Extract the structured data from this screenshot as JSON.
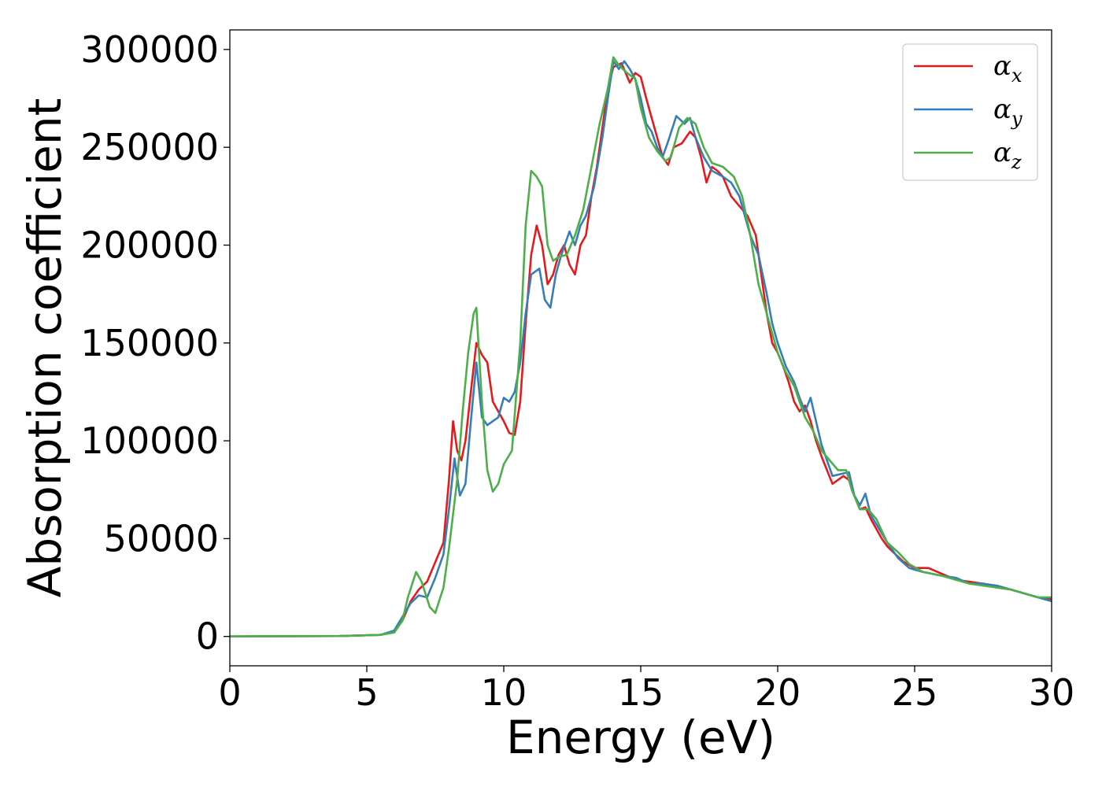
{
  "chart_data": {
    "type": "line",
    "title": "",
    "xlabel": "Energy (eV)",
    "ylabel": "Absorption coefficient",
    "xlim": [
      0,
      30
    ],
    "ylim": [
      -15000,
      310000
    ],
    "xticks": [
      0,
      5,
      10,
      15,
      20,
      25,
      30
    ],
    "yticks": [
      0,
      50000,
      100000,
      150000,
      200000,
      250000,
      300000
    ],
    "grid": false,
    "legend_position": "top-right",
    "series": [
      {
        "name": "αx",
        "base": "α",
        "sub": "x",
        "color": "#e41a1c",
        "points": [
          [
            0,
            0
          ],
          [
            4,
            200
          ],
          [
            5.5,
            800
          ],
          [
            6.0,
            2500
          ],
          [
            6.3,
            8000
          ],
          [
            6.6,
            18000
          ],
          [
            6.9,
            24000
          ],
          [
            7.2,
            28000
          ],
          [
            7.5,
            38000
          ],
          [
            7.8,
            48000
          ],
          [
            8.0,
            80000
          ],
          [
            8.15,
            110000
          ],
          [
            8.3,
            95000
          ],
          [
            8.45,
            90000
          ],
          [
            8.6,
            100000
          ],
          [
            8.8,
            125000
          ],
          [
            9.0,
            150000
          ],
          [
            9.2,
            144000
          ],
          [
            9.4,
            140000
          ],
          [
            9.6,
            120000
          ],
          [
            9.8,
            115000
          ],
          [
            10.0,
            110000
          ],
          [
            10.2,
            104000
          ],
          [
            10.4,
            103000
          ],
          [
            10.6,
            120000
          ],
          [
            10.8,
            160000
          ],
          [
            11.0,
            195000
          ],
          [
            11.2,
            210000
          ],
          [
            11.4,
            200000
          ],
          [
            11.6,
            180000
          ],
          [
            11.8,
            185000
          ],
          [
            12.0,
            195000
          ],
          [
            12.2,
            200000
          ],
          [
            12.4,
            190000
          ],
          [
            12.6,
            185000
          ],
          [
            12.8,
            200000
          ],
          [
            13.0,
            205000
          ],
          [
            13.2,
            225000
          ],
          [
            13.4,
            240000
          ],
          [
            13.6,
            260000
          ],
          [
            13.8,
            280000
          ],
          [
            14.0,
            291000
          ],
          [
            14.3,
            293000
          ],
          [
            14.6,
            283000
          ],
          [
            14.8,
            288000
          ],
          [
            15.0,
            286000
          ],
          [
            15.2,
            275000
          ],
          [
            15.4,
            265000
          ],
          [
            15.6,
            255000
          ],
          [
            15.8,
            245000
          ],
          [
            16.0,
            241000
          ],
          [
            16.2,
            250000
          ],
          [
            16.5,
            252000
          ],
          [
            16.8,
            258000
          ],
          [
            17.0,
            255000
          ],
          [
            17.2,
            245000
          ],
          [
            17.4,
            232000
          ],
          [
            17.6,
            240000
          ],
          [
            17.8,
            238000
          ],
          [
            18.0,
            235000
          ],
          [
            18.3,
            225000
          ],
          [
            18.6,
            220000
          ],
          [
            18.9,
            215000
          ],
          [
            19.2,
            205000
          ],
          [
            19.4,
            185000
          ],
          [
            19.6,
            165000
          ],
          [
            19.8,
            150000
          ],
          [
            20.0,
            145000
          ],
          [
            20.2,
            138000
          ],
          [
            20.4,
            130000
          ],
          [
            20.6,
            120000
          ],
          [
            20.8,
            115000
          ],
          [
            21.0,
            118000
          ],
          [
            21.2,
            110000
          ],
          [
            21.4,
            100000
          ],
          [
            21.6,
            92000
          ],
          [
            21.8,
            85000
          ],
          [
            22.0,
            78000
          ],
          [
            22.2,
            80000
          ],
          [
            22.4,
            82000
          ],
          [
            22.6,
            80000
          ],
          [
            22.8,
            72000
          ],
          [
            23.0,
            65000
          ],
          [
            23.2,
            66000
          ],
          [
            23.4,
            60000
          ],
          [
            23.6,
            55000
          ],
          [
            23.8,
            50000
          ],
          [
            24.0,
            46000
          ],
          [
            24.3,
            42000
          ],
          [
            24.6,
            38000
          ],
          [
            25.0,
            35000
          ],
          [
            25.5,
            35000
          ],
          [
            26.0,
            32000
          ],
          [
            26.5,
            29000
          ],
          [
            27.0,
            28000
          ],
          [
            27.5,
            27000
          ],
          [
            28.0,
            25000
          ],
          [
            28.5,
            24000
          ],
          [
            29.0,
            22000
          ],
          [
            29.5,
            20000
          ],
          [
            30.0,
            19000
          ]
        ]
      },
      {
        "name": "αy",
        "base": "α",
        "sub": "y",
        "color": "#377eb8",
        "points": [
          [
            0,
            0
          ],
          [
            4,
            200
          ],
          [
            5.5,
            800
          ],
          [
            6.0,
            3000
          ],
          [
            6.3,
            10000
          ],
          [
            6.6,
            17000
          ],
          [
            6.9,
            21000
          ],
          [
            7.2,
            20000
          ],
          [
            7.5,
            30000
          ],
          [
            7.8,
            42000
          ],
          [
            8.0,
            65000
          ],
          [
            8.2,
            91000
          ],
          [
            8.4,
            72000
          ],
          [
            8.6,
            78000
          ],
          [
            8.8,
            110000
          ],
          [
            9.0,
            140000
          ],
          [
            9.2,
            112000
          ],
          [
            9.4,
            108000
          ],
          [
            9.6,
            110000
          ],
          [
            9.8,
            112000
          ],
          [
            10.0,
            122000
          ],
          [
            10.2,
            120000
          ],
          [
            10.4,
            125000
          ],
          [
            10.6,
            140000
          ],
          [
            10.8,
            165000
          ],
          [
            11.0,
            185000
          ],
          [
            11.3,
            188000
          ],
          [
            11.5,
            172000
          ],
          [
            11.7,
            168000
          ],
          [
            11.9,
            185000
          ],
          [
            12.1,
            195000
          ],
          [
            12.4,
            207000
          ],
          [
            12.6,
            200000
          ],
          [
            12.8,
            210000
          ],
          [
            13.0,
            215000
          ],
          [
            13.3,
            230000
          ],
          [
            13.6,
            255000
          ],
          [
            13.8,
            275000
          ],
          [
            14.0,
            294000
          ],
          [
            14.2,
            290000
          ],
          [
            14.4,
            294000
          ],
          [
            14.6,
            290000
          ],
          [
            14.8,
            285000
          ],
          [
            15.0,
            275000
          ],
          [
            15.2,
            262000
          ],
          [
            15.4,
            258000
          ],
          [
            15.6,
            250000
          ],
          [
            15.8,
            245000
          ],
          [
            16.0,
            253000
          ],
          [
            16.3,
            266000
          ],
          [
            16.6,
            262000
          ],
          [
            16.8,
            265000
          ],
          [
            17.0,
            255000
          ],
          [
            17.3,
            245000
          ],
          [
            17.6,
            238000
          ],
          [
            18.0,
            235000
          ],
          [
            18.3,
            232000
          ],
          [
            18.6,
            225000
          ],
          [
            19.0,
            205000
          ],
          [
            19.3,
            195000
          ],
          [
            19.6,
            175000
          ],
          [
            19.8,
            160000
          ],
          [
            20.0,
            150000
          ],
          [
            20.3,
            138000
          ],
          [
            20.6,
            130000
          ],
          [
            20.8,
            122000
          ],
          [
            21.0,
            115000
          ],
          [
            21.2,
            122000
          ],
          [
            21.4,
            110000
          ],
          [
            21.6,
            98000
          ],
          [
            21.8,
            90000
          ],
          [
            22.0,
            82000
          ],
          [
            22.3,
            83000
          ],
          [
            22.6,
            84000
          ],
          [
            22.8,
            72000
          ],
          [
            23.0,
            67000
          ],
          [
            23.2,
            73000
          ],
          [
            23.4,
            62000
          ],
          [
            23.7,
            55000
          ],
          [
            24.0,
            48000
          ],
          [
            24.4,
            40000
          ],
          [
            24.8,
            35000
          ],
          [
            25.3,
            33000
          ],
          [
            26.0,
            31000
          ],
          [
            26.5,
            30000
          ],
          [
            27.0,
            27000
          ],
          [
            27.5,
            27000
          ],
          [
            28.0,
            26000
          ],
          [
            28.5,
            24000
          ],
          [
            29.0,
            22000
          ],
          [
            29.5,
            20000
          ],
          [
            30.0,
            18000
          ]
        ]
      },
      {
        "name": "αz",
        "base": "α",
        "sub": "z",
        "color": "#4daf4a",
        "points": [
          [
            0,
            0
          ],
          [
            4,
            200
          ],
          [
            5.5,
            800
          ],
          [
            6.0,
            2000
          ],
          [
            6.3,
            8000
          ],
          [
            6.5,
            20000
          ],
          [
            6.8,
            33000
          ],
          [
            7.0,
            28000
          ],
          [
            7.3,
            15000
          ],
          [
            7.5,
            12000
          ],
          [
            7.8,
            25000
          ],
          [
            8.0,
            45000
          ],
          [
            8.3,
            80000
          ],
          [
            8.5,
            115000
          ],
          [
            8.7,
            145000
          ],
          [
            8.9,
            165000
          ],
          [
            9.0,
            168000
          ],
          [
            9.2,
            120000
          ],
          [
            9.4,
            85000
          ],
          [
            9.6,
            74000
          ],
          [
            9.8,
            78000
          ],
          [
            10.0,
            88000
          ],
          [
            10.3,
            95000
          ],
          [
            10.6,
            150000
          ],
          [
            10.8,
            210000
          ],
          [
            11.0,
            238000
          ],
          [
            11.2,
            235000
          ],
          [
            11.4,
            230000
          ],
          [
            11.6,
            200000
          ],
          [
            11.8,
            192000
          ],
          [
            12.0,
            194000
          ],
          [
            12.3,
            195000
          ],
          [
            12.6,
            205000
          ],
          [
            12.9,
            218000
          ],
          [
            13.2,
            240000
          ],
          [
            13.5,
            262000
          ],
          [
            13.8,
            280000
          ],
          [
            14.0,
            296000
          ],
          [
            14.2,
            292000
          ],
          [
            14.5,
            288000
          ],
          [
            14.8,
            285000
          ],
          [
            15.0,
            270000
          ],
          [
            15.3,
            255000
          ],
          [
            15.6,
            248000
          ],
          [
            15.9,
            243000
          ],
          [
            16.1,
            245000
          ],
          [
            16.4,
            260000
          ],
          [
            16.7,
            265000
          ],
          [
            17.0,
            262000
          ],
          [
            17.3,
            250000
          ],
          [
            17.6,
            242000
          ],
          [
            18.0,
            240000
          ],
          [
            18.4,
            235000
          ],
          [
            18.7,
            225000
          ],
          [
            19.0,
            205000
          ],
          [
            19.3,
            180000
          ],
          [
            19.6,
            165000
          ],
          [
            19.8,
            155000
          ],
          [
            20.0,
            145000
          ],
          [
            20.3,
            135000
          ],
          [
            20.6,
            128000
          ],
          [
            20.8,
            120000
          ],
          [
            21.0,
            112000
          ],
          [
            21.3,
            105000
          ],
          [
            21.6,
            95000
          ],
          [
            21.9,
            90000
          ],
          [
            22.2,
            85000
          ],
          [
            22.5,
            85000
          ],
          [
            22.7,
            75000
          ],
          [
            23.0,
            65000
          ],
          [
            23.3,
            65000
          ],
          [
            23.6,
            60000
          ],
          [
            24.0,
            48000
          ],
          [
            24.4,
            43000
          ],
          [
            24.8,
            37000
          ],
          [
            25.3,
            33000
          ],
          [
            26.0,
            31000
          ],
          [
            26.5,
            29000
          ],
          [
            27.0,
            27000
          ],
          [
            27.5,
            26000
          ],
          [
            28.0,
            25000
          ],
          [
            28.5,
            24000
          ],
          [
            29.0,
            22000
          ],
          [
            29.5,
            20000
          ],
          [
            30.0,
            20000
          ]
        ]
      }
    ]
  }
}
